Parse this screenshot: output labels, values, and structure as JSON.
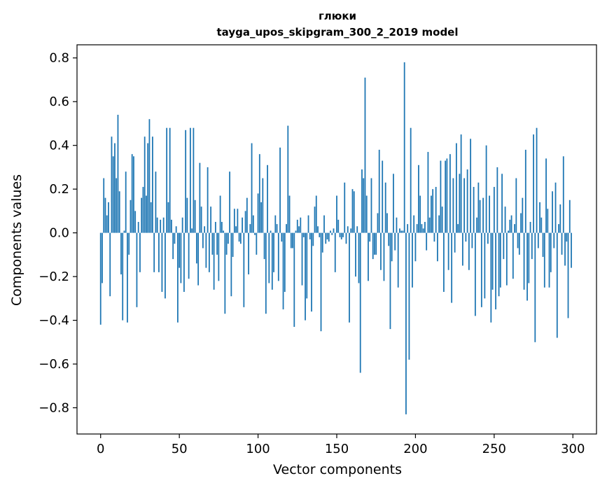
{
  "chart_data": {
    "type": "bar",
    "title": "глюки",
    "subtitle": "tayga_upos_skipgram_300_2_2019 model",
    "xlabel": "Vector components",
    "ylabel": "Components values",
    "xlim": [
      -15,
      315
    ],
    "ylim": [
      -0.92,
      0.86
    ],
    "xticks": [
      0,
      50,
      100,
      150,
      200,
      250,
      300
    ],
    "xtick_labels": [
      "0",
      "50",
      "100",
      "150",
      "200",
      "250",
      "300"
    ],
    "yticks": [
      0.8,
      0.6,
      0.4,
      0.2,
      0.0,
      -0.2,
      -0.4,
      -0.6,
      -0.8
    ],
    "ytick_labels": [
      "0.8",
      "0.6",
      "0.4",
      "0.2",
      "0.0",
      "−0.2",
      "−0.4",
      "−0.6",
      "−0.8"
    ],
    "grid": false,
    "bar_color": "#1f77b4",
    "n_components": 300,
    "values": [
      -0.42,
      -0.23,
      0.25,
      0.16,
      0.08,
      0.14,
      -0.29,
      0.44,
      0.35,
      0.41,
      0.25,
      0.54,
      0.19,
      -0.19,
      -0.4,
      0.01,
      0.28,
      -0.41,
      -0.1,
      0.15,
      0.36,
      0.35,
      0.1,
      -0.34,
      0.05,
      -0.18,
      0.16,
      0.21,
      0.44,
      0.17,
      0.41,
      0.52,
      0.14,
      0.44,
      -0.18,
      0.28,
      0.07,
      -0.18,
      0.06,
      -0.27,
      0.07,
      -0.3,
      0.48,
      0.14,
      0.48,
      0.06,
      -0.12,
      -0.05,
      0.03,
      -0.41,
      -0.16,
      -0.23,
      0.07,
      -0.27,
      0.47,
      0.16,
      -0.21,
      0.48,
      0.02,
      0.48,
      0.15,
      -0.14,
      -0.24,
      0.32,
      0.12,
      -0.07,
      0.03,
      -0.16,
      0.3,
      -0.18,
      0.12,
      -0.1,
      -0.26,
      0.05,
      -0.1,
      -0.22,
      0.17,
      0.05,
      0.01,
      -0.37,
      -0.1,
      -0.05,
      0.28,
      -0.29,
      -0.11,
      0.11,
      0.03,
      0.11,
      -0.04,
      -0.05,
      0.07,
      -0.34,
      0.1,
      0.16,
      -0.19,
      0.04,
      0.41,
      0.08,
      -0.01,
      -0.1,
      0.18,
      0.36,
      0.14,
      0.25,
      -0.12,
      -0.37,
      0.31,
      -0.23,
      0.01,
      -0.26,
      -0.18,
      0.08,
      0.04,
      -0.22,
      0.39,
      -0.04,
      -0.35,
      -0.27,
      0.04,
      0.49,
      0.17,
      -0.07,
      -0.07,
      -0.43,
      0.01,
      0.06,
      0.03,
      0.07,
      -0.24,
      -0.02,
      -0.4,
      -0.3,
      0.08,
      -0.03,
      -0.36,
      -0.06,
      0.12,
      0.17,
      0.03,
      -0.02,
      -0.45,
      -0.09,
      0.08,
      -0.05,
      -0.03,
      -0.04,
      0.01,
      -0.01,
      0.02,
      -0.18,
      0.17,
      0.06,
      -0.02,
      -0.03,
      -0.02,
      0.23,
      -0.05,
      0.03,
      -0.41,
      0.02,
      0.2,
      0.19,
      -0.2,
      0.03,
      -0.23,
      -0.64,
      0.29,
      0.25,
      0.71,
      0.17,
      -0.22,
      -0.04,
      0.25,
      -0.12,
      -0.1,
      -0.1,
      0.09,
      0.38,
      -0.17,
      0.33,
      -0.22,
      0.23,
      0.09,
      -0.06,
      -0.44,
      -0.13,
      0.27,
      -0.08,
      0.07,
      -0.25,
      0.02,
      0.01,
      0.01,
      0.78,
      -0.83,
      0.04,
      -0.58,
      0.48,
      -0.25,
      0.08,
      -0.13,
      0.04,
      0.31,
      0.17,
      0.04,
      0.02,
      0.05,
      -0.08,
      0.37,
      0.07,
      0.17,
      0.2,
      -0.04,
      0.21,
      -0.13,
      0.08,
      0.33,
      0.12,
      -0.27,
      0.33,
      0.34,
      -0.17,
      0.36,
      -0.32,
      0.25,
      -0.09,
      0.41,
      0.04,
      0.27,
      0.45,
      -0.15,
      0.25,
      -0.04,
      0.29,
      -0.17,
      0.43,
      -0.07,
      0.21,
      -0.38,
      0.07,
      0.23,
      0.15,
      -0.34,
      0.16,
      -0.3,
      0.4,
      -0.05,
      0.17,
      -0.41,
      -0.26,
      0.21,
      -0.35,
      0.3,
      -0.29,
      -0.25,
      0.27,
      -0.12,
      0.12,
      -0.24,
      0.01,
      0.06,
      0.08,
      -0.21,
      0.04,
      0.25,
      -0.07,
      -0.1,
      0.09,
      0.16,
      -0.26,
      0.38,
      -0.31,
      -0.23,
      0.05,
      -0.12,
      0.45,
      -0.5,
      0.48,
      -0.07,
      0.14,
      0.07,
      -0.11,
      -0.25,
      0.34,
      0.11,
      -0.25,
      -0.18,
      0.19,
      -0.07,
      0.23,
      -0.48,
      0.04,
      0.13,
      -0.1,
      0.35,
      -0.15,
      -0.04,
      -0.39,
      0.15,
      -0.16
    ]
  }
}
